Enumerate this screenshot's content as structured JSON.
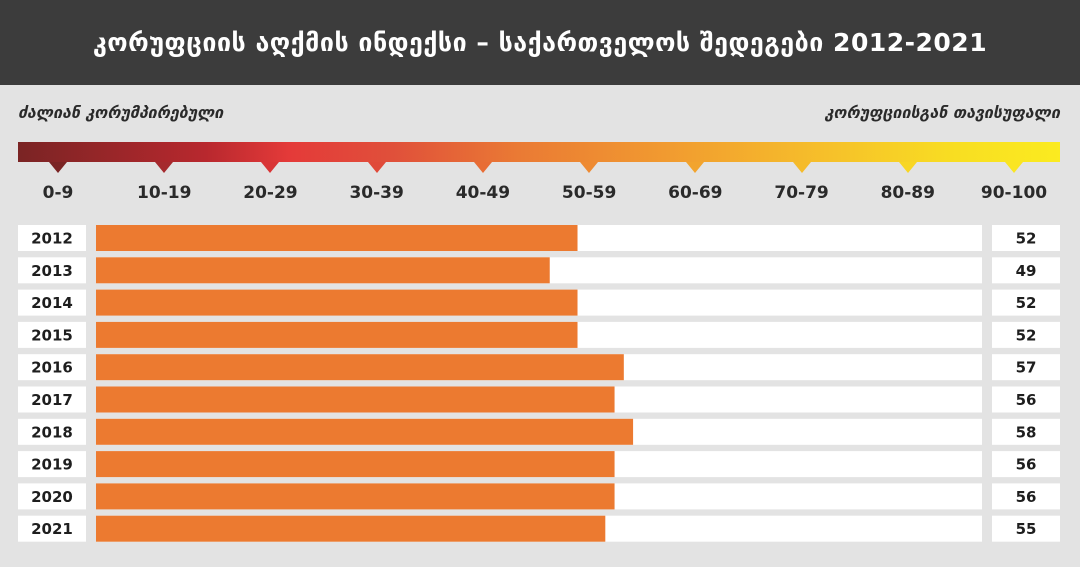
{
  "title": "კორუფციის აღქმის ინდექსი – საქართველოს შედეგები 2012-2021",
  "scale": {
    "left_label": "ძალიან კორუმპირებული",
    "right_label": "კორუფციისგან თავისუფალი",
    "ranges": [
      "0-9",
      "10-19",
      "20-29",
      "30-39",
      "40-49",
      "50-59",
      "60-69",
      "70-79",
      "80-89",
      "90-100"
    ],
    "marker_colors": [
      "#7a2424",
      "#a52a2e",
      "#d93536",
      "#e04a39",
      "#e86d35",
      "#ee8a32",
      "#f2a42e",
      "#f5bb2a",
      "#f8d624",
      "#fae522"
    ]
  },
  "chart_data": {
    "type": "bar",
    "orientation": "horizontal",
    "title": "კორუფციის აღქმის ინდექსი – საქართველოს შედეგები 2012-2021",
    "categories": [
      "2012",
      "2013",
      "2014",
      "2015",
      "2016",
      "2017",
      "2018",
      "2019",
      "2020",
      "2021"
    ],
    "values": [
      52,
      49,
      52,
      52,
      57,
      56,
      58,
      56,
      56,
      55
    ],
    "xlim": [
      0,
      100
    ],
    "bar_color": "#ec7a30",
    "track_color": "#ffffff"
  }
}
